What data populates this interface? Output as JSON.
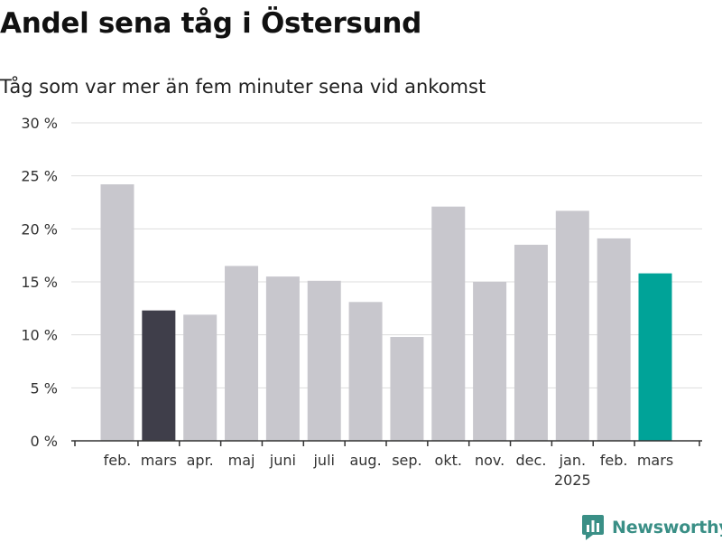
{
  "title": "Andel sena tåg i Östersund",
  "subtitle": "Tåg som var mer än fem minuter sena vid ankomst",
  "logo": {
    "text": "Newsworthy",
    "icon": "bar-chart-pin-icon",
    "color": "#3a8f86"
  },
  "colors": {
    "bar_default": "#c8c7cd",
    "bar_highlight_previous": "#3f3e4a",
    "bar_highlight_current": "#00a398",
    "grid": "#dddddd",
    "axis": "#333333"
  },
  "chart_data": {
    "type": "bar",
    "ylim": [
      0,
      30
    ],
    "yticks": [
      0,
      5,
      10,
      15,
      20,
      25,
      30
    ],
    "ytick_labels": [
      "0 %",
      "5 %",
      "10 %",
      "15 %",
      "20 %",
      "25 %",
      "30 %"
    ],
    "grid": true,
    "categories": [
      "feb.",
      "mars",
      "apr.",
      "maj",
      "juni",
      "juli",
      "aug.",
      "sep.",
      "okt.",
      "nov.",
      "dec.",
      "jan.",
      "feb.",
      "mars"
    ],
    "category_sublabels": [
      "",
      "",
      "",
      "",
      "",
      "",
      "",
      "",
      "",
      "",
      "",
      "2025",
      "",
      ""
    ],
    "values": [
      24.2,
      12.3,
      11.9,
      16.5,
      15.5,
      15.1,
      13.1,
      9.8,
      22.1,
      15.0,
      18.5,
      21.7,
      19.1,
      15.8
    ],
    "highlight": [
      "default",
      "previous",
      "default",
      "default",
      "default",
      "default",
      "default",
      "default",
      "default",
      "default",
      "default",
      "default",
      "default",
      "current"
    ]
  }
}
